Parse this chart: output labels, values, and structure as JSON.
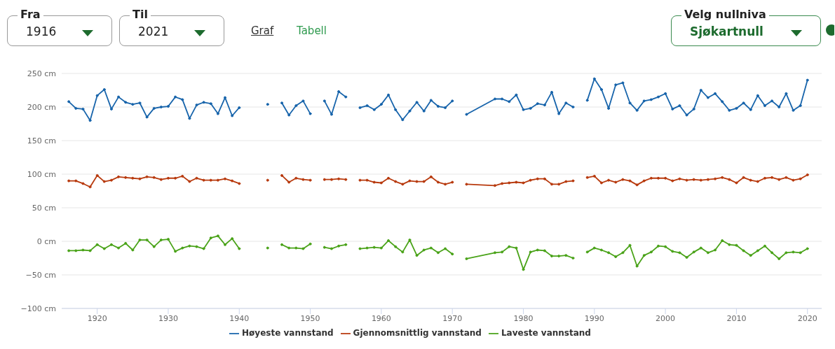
{
  "chart_data": {
    "type": "line",
    "annotations": [
      "Fra",
      "1916",
      "Til",
      "2021",
      "Graf",
      "Tabell",
      "Velg nullniva",
      "Sjøkartnull"
    ],
    "x": [
      1916,
      1917,
      1918,
      1919,
      1920,
      1921,
      1922,
      1923,
      1924,
      1925,
      1926,
      1927,
      1928,
      1929,
      1930,
      1931,
      1932,
      1933,
      1934,
      1935,
      1936,
      1937,
      1938,
      1939,
      1940,
      1941,
      1944,
      1945,
      1946,
      1947,
      1948,
      1949,
      1950,
      1951,
      1952,
      1953,
      1954,
      1955,
      1956,
      1957,
      1958,
      1959,
      1960,
      1961,
      1962,
      1963,
      1964,
      1965,
      1966,
      1967,
      1968,
      1969,
      1970,
      1971,
      1972,
      1976,
      1977,
      1978,
      1979,
      1980,
      1981,
      1982,
      1983,
      1984,
      1985,
      1986,
      1987,
      1988,
      1989,
      1990,
      1991,
      1992,
      1993,
      1994,
      1995,
      1996,
      1997,
      1998,
      1999,
      2000,
      2001,
      2002,
      2003,
      2004,
      2005,
      2006,
      2007,
      2008,
      2009,
      2010,
      2011,
      2012,
      2013,
      2014,
      2015,
      2016,
      2017,
      2018,
      2019,
      2020
    ],
    "series": [
      {
        "name": "Høyeste vannstand",
        "color": "#1764ab",
        "values": [
          208,
          198,
          197,
          180,
          217,
          226,
          197,
          215,
          207,
          204,
          206,
          185,
          198,
          200,
          201,
          215,
          211,
          183,
          203,
          207,
          205,
          190,
          214,
          187,
          199,
          null,
          204,
          null,
          206,
          188,
          202,
          209,
          190,
          null,
          209,
          189,
          223,
          215,
          null,
          199,
          202,
          196,
          204,
          218,
          196,
          181,
          194,
          207,
          194,
          210,
          201,
          199,
          209,
          null,
          189,
          212,
          212,
          208,
          218,
          196,
          198,
          205,
          203,
          222,
          190,
          206,
          200,
          null,
          210,
          242,
          226,
          198,
          233,
          236,
          206,
          195,
          209,
          211,
          215,
          220,
          197,
          202,
          188,
          197,
          225,
          214,
          220,
          208,
          195,
          198,
          206,
          196,
          217,
          202,
          209,
          200,
          220,
          195,
          202,
          240
        ]
      },
      {
        "name": "Gjennomsnittlig vannstand",
        "color": "#b83a0e",
        "values": [
          90,
          90,
          86,
          81,
          98,
          89,
          91,
          96,
          95,
          94,
          93,
          96,
          95,
          92,
          94,
          94,
          97,
          89,
          94,
          91,
          91,
          91,
          93,
          90,
          86,
          null,
          91,
          null,
          98,
          88,
          94,
          92,
          91,
          null,
          92,
          92,
          93,
          92,
          null,
          91,
          91,
          88,
          87,
          94,
          89,
          85,
          90,
          89,
          89,
          96,
          88,
          85,
          88,
          null,
          85,
          83,
          86,
          87,
          88,
          87,
          91,
          93,
          93,
          85,
          85,
          89,
          90,
          null,
          95,
          97,
          87,
          91,
          88,
          92,
          90,
          84,
          90,
          94,
          94,
          94,
          90,
          93,
          91,
          92,
          91,
          92,
          93,
          95,
          92,
          87,
          95,
          91,
          89,
          94,
          95,
          92,
          95,
          91,
          93,
          99
        ]
      },
      {
        "name": "Laveste vannstand",
        "color": "#4aa319",
        "values": [
          -14,
          -14,
          -13,
          -14,
          -5,
          -11,
          -5,
          -10,
          -3,
          -13,
          2,
          2,
          -8,
          2,
          3,
          -15,
          -10,
          -7,
          -8,
          -11,
          5,
          8,
          -5,
          4,
          -11,
          null,
          -10,
          null,
          -5,
          -10,
          -10,
          -11,
          -4,
          null,
          -9,
          -11,
          -7,
          -5,
          null,
          -11,
          -10,
          -9,
          -10,
          1,
          -8,
          -16,
          2,
          -21,
          -13,
          -10,
          -17,
          -11,
          -19,
          null,
          -26,
          -17,
          -16,
          -8,
          -10,
          -42,
          -16,
          -13,
          -14,
          -22,
          -22,
          -21,
          -25,
          null,
          -16,
          -10,
          -13,
          -17,
          -23,
          -17,
          -6,
          -37,
          -21,
          -16,
          -7,
          -8,
          -15,
          -17,
          -24,
          -16,
          -10,
          -17,
          -13,
          1,
          -5,
          -6,
          -14,
          -21,
          -14,
          -7,
          -17,
          -26,
          -17,
          -16,
          -17,
          -11
        ]
      }
    ],
    "xlim": [
      1915,
      2022
    ],
    "xticks": [
      1920,
      1930,
      1940,
      1950,
      1960,
      1970,
      1980,
      1990,
      2000,
      2010,
      2020
    ],
    "ylim": [
      -100,
      250
    ],
    "yticks": [
      {
        "value": -100,
        "label": "−100 cm"
      },
      {
        "value": -50,
        "label": "−50 cm"
      },
      {
        "value": 0,
        "label": "0 cm"
      },
      {
        "value": 50,
        "label": "50 cm"
      },
      {
        "value": 100,
        "label": "100 cm"
      },
      {
        "value": 150,
        "label": "150 cm"
      },
      {
        "value": 200,
        "label": "200 cm"
      },
      {
        "value": 250,
        "label": "250 cm"
      }
    ],
    "grid": "y",
    "legend": "bottom",
    "marker": "circle",
    "line_style": "solid"
  }
}
